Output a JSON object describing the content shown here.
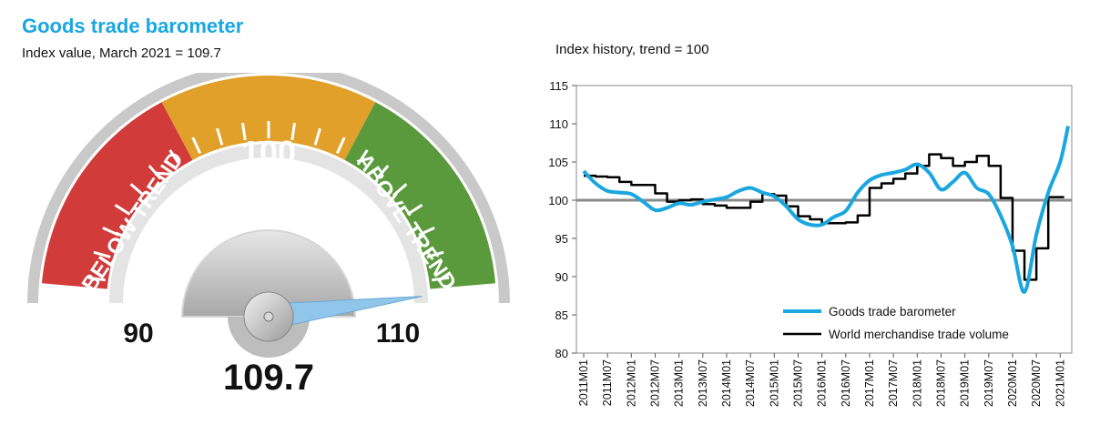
{
  "header": {
    "title": "Goods trade barometer",
    "subtitle": "Index value, March 2021 = 109.7",
    "history_title": "Index history, trend = 100"
  },
  "gauge": {
    "value": 109.7,
    "value_label": "109.7",
    "min_label": "90",
    "max_label": "110",
    "center_label": "100",
    "below_label": "BELOW TREND",
    "above_label": "ABOVE TREND",
    "colors": {
      "below": "#d13b3a",
      "trend": "#e0a02a",
      "above": "#5a9a3c",
      "needle": "#8fc6ea"
    }
  },
  "chart_data": {
    "type": "line",
    "xlabel": "",
    "ylabel": "",
    "ylim": [
      80,
      115
    ],
    "yticks": [
      80,
      85,
      90,
      95,
      100,
      105,
      110,
      115
    ],
    "reference_line": 100,
    "grid": false,
    "legend_position": "bottom-right",
    "x_tick_labels": [
      "2011M01",
      "2011M07",
      "2012M01",
      "2012M07",
      "2013M01",
      "2013M07",
      "2014M01",
      "2014M07",
      "2015M01",
      "2015M07",
      "2016M01",
      "2016M07",
      "2017M01",
      "2017M07",
      "2018M01",
      "2018M07",
      "2019M01",
      "2019M07",
      "2020M01",
      "2020M07",
      "2021M01"
    ],
    "series": [
      {
        "name": "Goods trade barometer",
        "color": "#1aa7e0",
        "style": "smooth",
        "points": [
          [
            "2011M01",
            103.8
          ],
          [
            "2011M04",
            102.2
          ],
          [
            "2011M07",
            101.2
          ],
          [
            "2011M10",
            101.0
          ],
          [
            "2012M01",
            100.8
          ],
          [
            "2012M04",
            99.8
          ],
          [
            "2012M07",
            98.7
          ],
          [
            "2012M10",
            99.0
          ],
          [
            "2013M01",
            99.6
          ],
          [
            "2013M04",
            99.4
          ],
          [
            "2013M07",
            99.8
          ],
          [
            "2013M10",
            100.1
          ],
          [
            "2014M01",
            100.4
          ],
          [
            "2014M04",
            101.2
          ],
          [
            "2014M07",
            101.6
          ],
          [
            "2014M10",
            101.0
          ],
          [
            "2015M01",
            100.5
          ],
          [
            "2015M04",
            99.2
          ],
          [
            "2015M07",
            97.5
          ],
          [
            "2015M10",
            96.8
          ],
          [
            "2016M01",
            96.8
          ],
          [
            "2016M04",
            97.8
          ],
          [
            "2016M07",
            98.6
          ],
          [
            "2016M10",
            101.0
          ],
          [
            "2017M01",
            102.6
          ],
          [
            "2017M04",
            103.3
          ],
          [
            "2017M07",
            103.6
          ],
          [
            "2017M10",
            104.0
          ],
          [
            "2018M01",
            104.7
          ],
          [
            "2018M04",
            103.6
          ],
          [
            "2018M07",
            101.4
          ],
          [
            "2018M10",
            102.4
          ],
          [
            "2019M01",
            103.6
          ],
          [
            "2019M04",
            101.6
          ],
          [
            "2019M07",
            100.8
          ],
          [
            "2019M10",
            98.0
          ],
          [
            "2020M01",
            94.0
          ],
          [
            "2020M04",
            88.0
          ],
          [
            "2020M07",
            95.5
          ],
          [
            "2020M10",
            101.0
          ],
          [
            "2021M01",
            105.0
          ],
          [
            "2021M03",
            109.7
          ]
        ]
      },
      {
        "name": "World merchandise trade volume",
        "color": "#000000",
        "style": "step",
        "points": [
          [
            "2011M01",
            103.2
          ],
          [
            "2011M04",
            103.1
          ],
          [
            "2011M07",
            103.0
          ],
          [
            "2011M10",
            102.4
          ],
          [
            "2012M01",
            102.0
          ],
          [
            "2012M04",
            102.0
          ],
          [
            "2012M07",
            100.9
          ],
          [
            "2012M10",
            99.8
          ],
          [
            "2013M01",
            100.0
          ],
          [
            "2013M04",
            100.1
          ],
          [
            "2013M07",
            99.5
          ],
          [
            "2013M10",
            99.3
          ],
          [
            "2014M01",
            99.0
          ],
          [
            "2014M04",
            99.0
          ],
          [
            "2014M07",
            99.8
          ],
          [
            "2014M10",
            100.8
          ],
          [
            "2015M01",
            100.6
          ],
          [
            "2015M04",
            99.2
          ],
          [
            "2015M07",
            97.9
          ],
          [
            "2015M10",
            97.5
          ],
          [
            "2016M01",
            97.0
          ],
          [
            "2016M04",
            97.0
          ],
          [
            "2016M07",
            97.1
          ],
          [
            "2016M10",
            98.0
          ],
          [
            "2017M01",
            101.6
          ],
          [
            "2017M04",
            102.2
          ],
          [
            "2017M07",
            102.8
          ],
          [
            "2017M10",
            103.5
          ],
          [
            "2018M01",
            104.5
          ],
          [
            "2018M04",
            106.0
          ],
          [
            "2018M07",
            105.5
          ],
          [
            "2018M10",
            104.5
          ],
          [
            "2019M01",
            105.0
          ],
          [
            "2019M04",
            105.8
          ],
          [
            "2019M07",
            104.5
          ],
          [
            "2019M10",
            100.3
          ],
          [
            "2020M01",
            93.4
          ],
          [
            "2020M04",
            89.6
          ],
          [
            "2020M07",
            93.7
          ],
          [
            "2020M10",
            100.4
          ],
          [
            "2021M01",
            100.4
          ]
        ]
      }
    ]
  }
}
